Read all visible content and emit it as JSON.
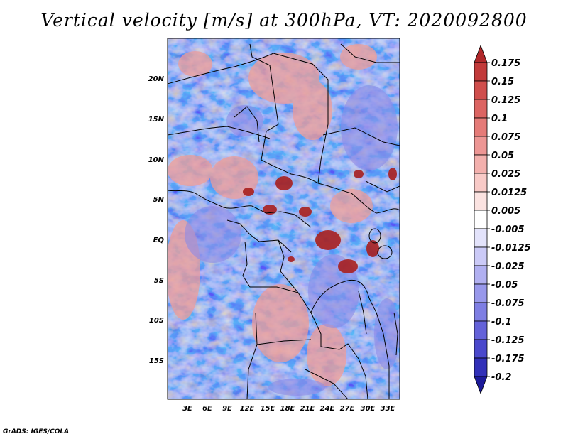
{
  "title": "Vertical velocity [m/s] at 300hPa, VT: 2020092800",
  "footer": "GrADS: IGES/COLA",
  "map": {
    "lat_labels": [
      "20N",
      "15N",
      "10N",
      "5N",
      "EQ",
      "5S",
      "10S",
      "15S"
    ],
    "lon_labels": [
      "3E",
      "6E",
      "9E",
      "12E",
      "15E",
      "18E",
      "21E",
      "24E",
      "27E",
      "30E",
      "33E"
    ]
  },
  "colorbar": {
    "labels": [
      "0.175",
      "0.15",
      "0.125",
      "0.1",
      "0.075",
      "0.05",
      "0.025",
      "0.0125",
      "0.005",
      "-0.005",
      "-0.0125",
      "-0.025",
      "-0.05",
      "-0.075",
      "-0.1",
      "-0.125",
      "-0.175",
      "-0.2"
    ],
    "colors": [
      "#b0282a",
      "#c23a3a",
      "#d04e4c",
      "#dc6462",
      "#e57b78",
      "#ed9694",
      "#f3b0ad",
      "#f8cac7",
      "#fbe3e1",
      "#ffffff",
      "#e3e3fb",
      "#cbcaf7",
      "#b1b0f1",
      "#9898eb",
      "#7e7ee3",
      "#6462d9",
      "#4a48cc",
      "#3130b8",
      "#1c1a99"
    ]
  }
}
